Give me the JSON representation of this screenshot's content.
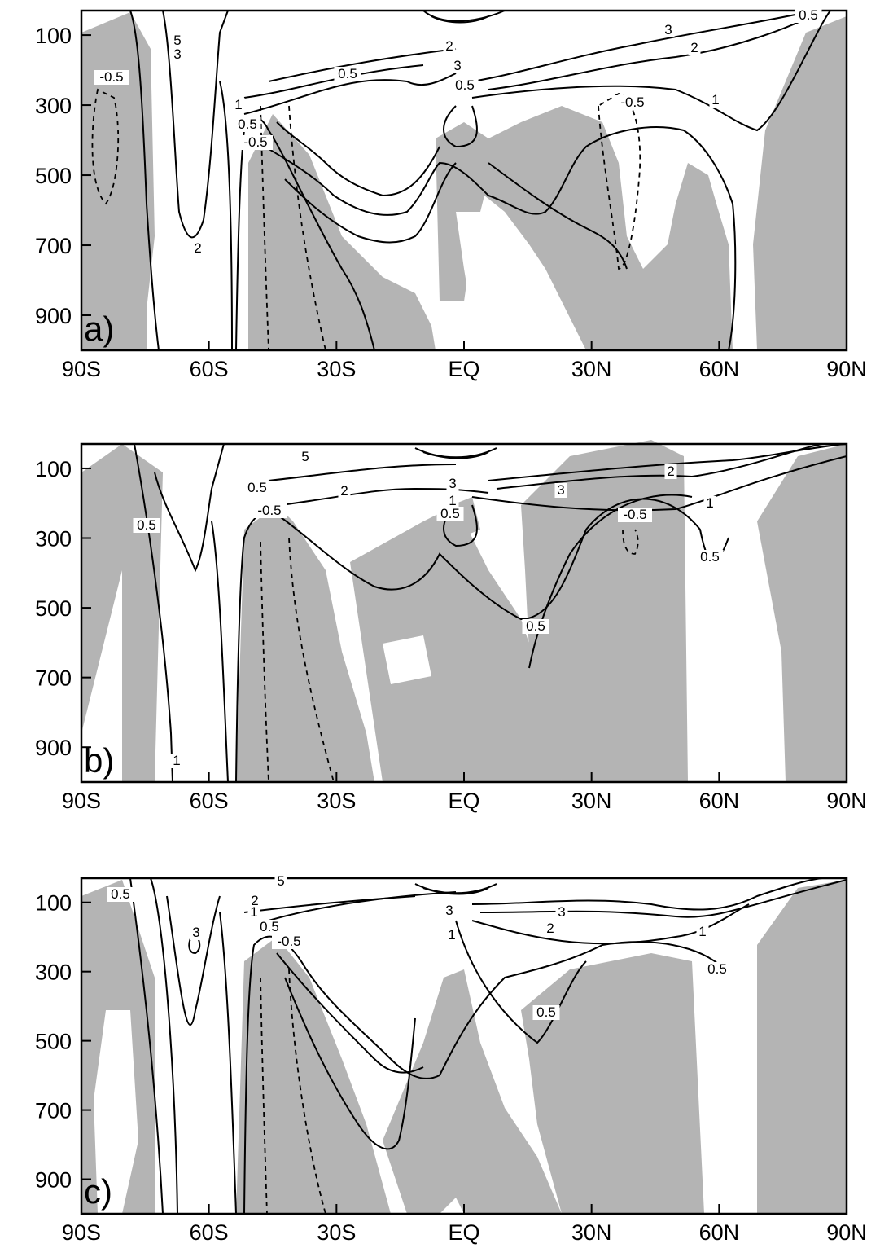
{
  "chart_data": [
    {
      "type": "contour",
      "panel_label": "a)",
      "x_tick_labels": [
        "90S",
        "60S",
        "30S",
        "EQ",
        "30N",
        "60N",
        "90N"
      ],
      "x_ticks": [
        -90,
        -60,
        -30,
        0,
        30,
        60,
        90
      ],
      "y_tick_labels": [
        "100",
        "300",
        "500",
        "700",
        "900"
      ],
      "y_ticks": [
        100,
        300,
        500,
        700,
        900
      ],
      "xlim": [
        -90,
        90
      ],
      "ylim": [
        30,
        1000
      ],
      "contour_labels": [
        "-0.5",
        "2",
        "5",
        "3",
        "1",
        "0.5",
        "-0.5",
        "0.5",
        "2",
        "3",
        "0.5",
        "-0.5",
        "3",
        "2",
        "1",
        "0.5"
      ],
      "shading_color": "#b4b4b4"
    },
    {
      "type": "contour",
      "panel_label": "b)",
      "x_tick_labels": [
        "90S",
        "60S",
        "30S",
        "EQ",
        "30N",
        "60N",
        "90N"
      ],
      "x_ticks": [
        -90,
        -60,
        -30,
        0,
        30,
        60,
        90
      ],
      "y_tick_labels": [
        "100",
        "300",
        "500",
        "700",
        "900"
      ],
      "y_ticks": [
        100,
        300,
        500,
        700,
        900
      ],
      "xlim": [
        -90,
        90
      ],
      "ylim": [
        30,
        1000
      ],
      "contour_labels": [
        "0.5",
        "1",
        "5",
        "0.5",
        "-0.5",
        "2",
        "3",
        "1",
        "0.5",
        "3",
        "2",
        "-0.5",
        "1",
        "0.5",
        "0.5"
      ],
      "shading_color": "#b4b4b4"
    },
    {
      "type": "contour",
      "panel_label": "c)",
      "x_tick_labels": [
        "90S",
        "60S",
        "30S",
        "EQ",
        "30N",
        "60N",
        "90N"
      ],
      "x_ticks": [
        -90,
        -60,
        -30,
        0,
        30,
        60,
        90
      ],
      "y_tick_labels": [
        "100",
        "300",
        "500",
        "700",
        "900"
      ],
      "y_ticks": [
        100,
        300,
        500,
        700,
        900
      ],
      "xlim": [
        -90,
        90
      ],
      "ylim": [
        30,
        1000
      ],
      "contour_labels": [
        "0.5",
        "3",
        "5",
        "2",
        "1",
        "0.5",
        "-0.5",
        "3",
        "3",
        "1",
        "2",
        "1",
        "0.5",
        "0.5"
      ],
      "shading_color": "#b4b4b4"
    }
  ]
}
